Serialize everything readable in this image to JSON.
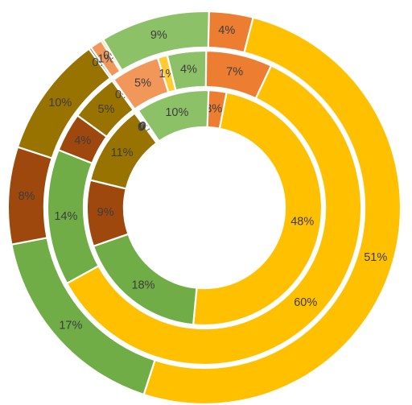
{
  "chart_data": {
    "type": "doughnut",
    "title": "",
    "legend": "none",
    "colors": [
      "#ED7D31",
      "#FFC000",
      "#70AD47",
      "#9E480E",
      "#997300",
      "#43682B",
      "#F1975A",
      "#FFCD33",
      "#8CC168"
    ],
    "rings": [
      {
        "name": "",
        "level": "outer",
        "values": [
          4,
          51,
          17,
          8,
          10,
          0,
          1,
          0,
          9
        ],
        "labels": [
          "4%",
          "51%",
          "17%",
          "8%",
          "10%",
          "0%",
          "1%",
          "0%",
          "9%"
        ]
      },
      {
        "name": "",
        "level": "middle",
        "values": [
          7,
          60,
          14,
          4,
          5,
          0,
          5,
          1,
          4
        ],
        "labels": [
          "7%",
          "60%",
          "14%",
          "4%",
          "5%",
          "0%",
          "5%",
          "1%",
          "4%"
        ]
      },
      {
        "name": "",
        "level": "inner",
        "values": [
          3,
          48,
          18,
          9,
          11,
          0,
          0,
          0,
          10
        ],
        "labels": [
          "3%",
          "48%",
          "18%",
          "9%",
          "11%",
          "0%",
          "0%",
          "0%",
          "10%"
        ]
      }
    ]
  }
}
